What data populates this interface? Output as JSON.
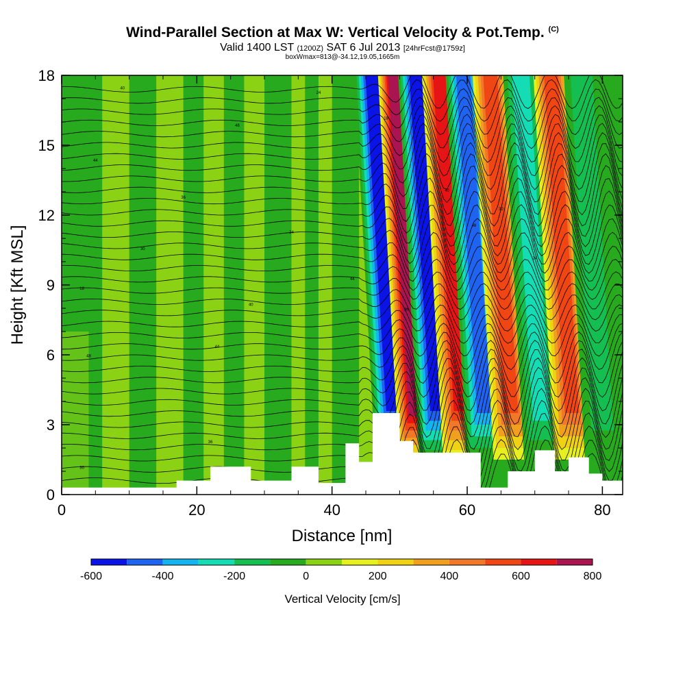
{
  "title": {
    "main": "Wind-Parallel Section at Max W: Vertical Velocity & Pot.Temp.",
    "tag": "(C)",
    "valid_prefix": "Valid 1400 LST",
    "valid_zulu": "(1200Z)",
    "valid_date": "SAT 6 Jul 2013",
    "forecast": "[24hrFcst@1759z]",
    "box_info": "boxWmax=813@-34.12,19.05,1665m"
  },
  "chart_data": {
    "type": "heatmap",
    "xlabel": "Distance [nm]",
    "ylabel": "Height [Kft MSL]",
    "xlim": [
      0,
      83
    ],
    "ylim": [
      0,
      18
    ],
    "x_ticks": [
      0,
      20,
      40,
      60,
      80
    ],
    "y_ticks": [
      0,
      3,
      6,
      9,
      12,
      15,
      18
    ],
    "colorbar": {
      "title": "Vertical Velocity [cm/s]",
      "boundaries": [
        -600,
        -500,
        -400,
        -300,
        -200,
        -100,
        0,
        100,
        200,
        300,
        400,
        500,
        600,
        700,
        800
      ],
      "labels": [
        "-600",
        "-400",
        "-200",
        "0",
        "200",
        "400",
        "600",
        "800"
      ],
      "colors": [
        "#0a14e6",
        "#1e64f0",
        "#14b4f0",
        "#14dcb4",
        "#14be50",
        "#28aa1e",
        "#8cd214",
        "#e6f01e",
        "#f0d214",
        "#f0a01e",
        "#f07828",
        "#f04614",
        "#e61414",
        "#aa1450"
      ]
    },
    "terrain_profile": {
      "x": [
        0,
        15,
        17,
        22,
        28,
        34,
        38,
        42,
        44,
        46,
        48,
        50,
        52,
        56,
        60,
        62,
        66,
        70,
        73,
        75,
        78,
        80,
        83
      ],
      "height": [
        0.3,
        0.3,
        0.6,
        1.2,
        0.6,
        1.2,
        0.5,
        2.2,
        1.4,
        3.5,
        3.5,
        2.3,
        1.8,
        1.8,
        1.8,
        0.3,
        1.0,
        1.9,
        1.0,
        1.6,
        0.9,
        0.6,
        0.3
      ]
    },
    "wave_bands": [
      {
        "x_center": 49.0,
        "value": -600
      },
      {
        "x_center": 52.5,
        "value": 800
      },
      {
        "x_center": 55.5,
        "value": -600
      },
      {
        "x_center": 59.0,
        "value": 600
      },
      {
        "x_center": 62.5,
        "value": -500
      },
      {
        "x_center": 66.5,
        "value": 500
      },
      {
        "x_center": 71.0,
        "value": -300
      },
      {
        "x_center": 75.5,
        "value": 500
      },
      {
        "x_center": 80.0,
        "value": -200
      }
    ],
    "isentrope_labels": [
      "40",
      "48",
      "44",
      "36",
      "30",
      "24",
      "18"
    ]
  }
}
